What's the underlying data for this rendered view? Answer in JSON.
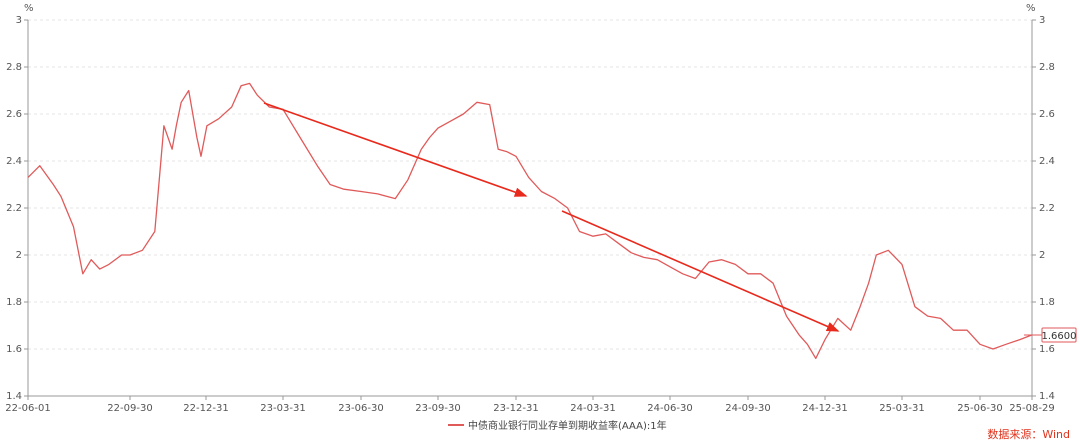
{
  "chart_data": {
    "type": "line",
    "unit_left": "%",
    "unit_right": "%",
    "ylim": [
      1.4,
      3.0
    ],
    "y_ticks": [
      "1.4",
      "1.6",
      "1.8",
      "2",
      "2.2",
      "2.4",
      "2.6",
      "2.8",
      "3"
    ],
    "x_ticks": [
      "22-06-01",
      "22-09-30",
      "22-12-31",
      "23-03-31",
      "23-06-30",
      "23-09-30",
      "23-12-31",
      "24-03-31",
      "24-06-30",
      "24-09-30",
      "24-12-31",
      "25-03-31",
      "25-06-30",
      "25-08-29"
    ],
    "grid": true,
    "legend_position": "bottom",
    "series": [
      {
        "name": "中债商业银行同业存单到期收益率(AAA):1年",
        "color": "#e05a5a",
        "x": [
          "2022-06-01",
          "2022-06-15",
          "2022-07-01",
          "2022-07-10",
          "2022-07-25",
          "2022-08-05",
          "2022-08-15",
          "2022-08-25",
          "2022-09-05",
          "2022-09-20",
          "2022-09-30",
          "2022-10-15",
          "2022-10-30",
          "2022-11-10",
          "2022-11-20",
          "2022-11-25",
          "2022-12-01",
          "2022-12-10",
          "2022-12-20",
          "2022-12-25",
          "2023-01-01",
          "2023-01-15",
          "2023-01-30",
          "2023-02-10",
          "2023-02-20",
          "2023-03-01",
          "2023-03-15",
          "2023-03-31",
          "2023-04-20",
          "2023-05-10",
          "2023-05-25",
          "2023-06-10",
          "2023-06-30",
          "2023-07-20",
          "2023-08-10",
          "2023-08-25",
          "2023-09-10",
          "2023-09-20",
          "2023-09-30",
          "2023-10-15",
          "2023-10-30",
          "2023-11-15",
          "2023-11-30",
          "2023-12-10",
          "2023-12-20",
          "2023-12-31",
          "2024-01-15",
          "2024-01-30",
          "2024-02-15",
          "2024-03-01",
          "2024-03-15",
          "2024-03-31",
          "2024-04-15",
          "2024-04-30",
          "2024-05-15",
          "2024-05-30",
          "2024-06-15",
          "2024-06-30",
          "2024-07-15",
          "2024-07-30",
          "2024-08-15",
          "2024-08-30",
          "2024-09-15",
          "2024-09-30",
          "2024-10-15",
          "2024-10-30",
          "2024-11-15",
          "2024-11-30",
          "2024-12-10",
          "2024-12-20",
          "2024-12-31",
          "2025-01-15",
          "2025-01-30",
          "2025-02-10",
          "2025-02-20",
          "2025-03-01",
          "2025-03-15",
          "2025-03-31",
          "2025-04-15",
          "2025-04-30",
          "2025-05-15",
          "2025-05-30",
          "2025-06-15",
          "2025-06-30",
          "2025-07-15",
          "2025-07-30",
          "2025-08-15",
          "2025-08-29"
        ],
        "values": [
          2.33,
          2.38,
          2.3,
          2.25,
          2.12,
          1.92,
          1.98,
          1.94,
          1.96,
          2.0,
          2.0,
          2.02,
          2.1,
          2.55,
          2.45,
          2.55,
          2.65,
          2.7,
          2.5,
          2.42,
          2.55,
          2.58,
          2.63,
          2.72,
          2.73,
          2.68,
          2.63,
          2.62,
          2.5,
          2.38,
          2.3,
          2.28,
          2.27,
          2.26,
          2.24,
          2.32,
          2.45,
          2.5,
          2.54,
          2.57,
          2.6,
          2.65,
          2.64,
          2.45,
          2.44,
          2.42,
          2.33,
          2.27,
          2.24,
          2.2,
          2.1,
          2.08,
          2.09,
          2.05,
          2.01,
          1.99,
          1.98,
          1.95,
          1.92,
          1.9,
          1.97,
          1.98,
          1.96,
          1.92,
          1.92,
          1.88,
          1.74,
          1.66,
          1.62,
          1.56,
          1.64,
          1.73,
          1.68,
          1.78,
          1.88,
          2.0,
          2.02,
          1.96,
          1.78,
          1.74,
          1.73,
          1.68,
          1.68,
          1.62,
          1.6,
          1.62,
          1.64,
          1.66
        ]
      }
    ],
    "last_value_label": "1.6600",
    "source": "数据来源：Wind"
  }
}
